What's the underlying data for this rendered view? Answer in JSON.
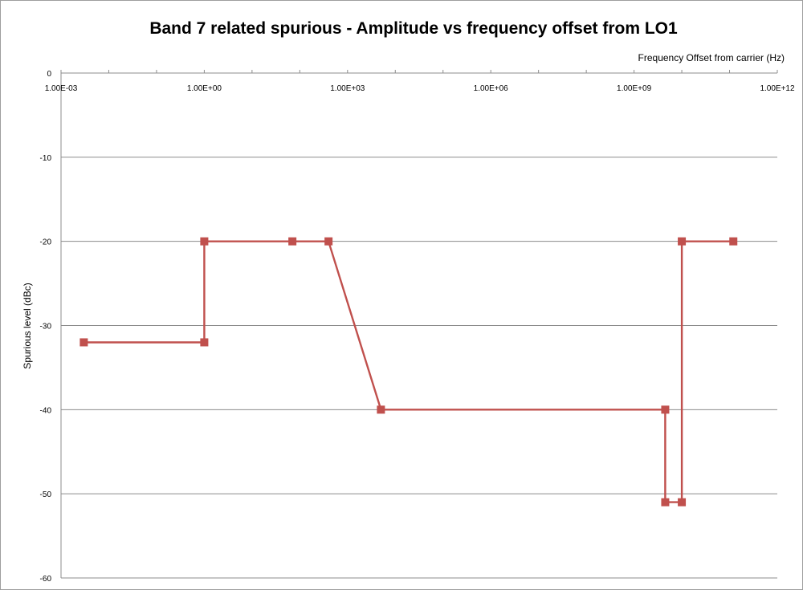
{
  "chart_data": {
    "type": "line",
    "title": "Band 7 related spurious - Amplitude vs frequency offset from LO1",
    "xlabel": "Frequency Offset from carrier (Hz)",
    "ylabel": "Spurious level (dBc)",
    "x_scale": "log",
    "xlim": [
      0.001,
      1000000000000
    ],
    "ylim": [
      -60,
      0
    ],
    "x_tick_labels": [
      "1.00E-03",
      "1.00E+00",
      "1.00E+03",
      "1.00E+06",
      "1.00E+09",
      "1.00E+12"
    ],
    "y_tick_labels": [
      "0",
      "-10",
      "-20",
      "-30",
      "-40",
      "-50",
      "-60"
    ],
    "y_ticks": [
      0,
      -10,
      -20,
      -30,
      -40,
      -50,
      -60
    ],
    "grid": "horizontal",
    "legend": "none",
    "series": [
      {
        "color": "#c0504d",
        "marker": "square",
        "points": [
          {
            "x": 0.003,
            "y": -32
          },
          {
            "x": 1,
            "y": -32
          },
          {
            "x": 1,
            "y": -20
          },
          {
            "x": 70,
            "y": -20
          },
          {
            "x": 400,
            "y": -20
          },
          {
            "x": 5000,
            "y": -40
          },
          {
            "x": 4500000000,
            "y": -40
          },
          {
            "x": 4500000000,
            "y": -51
          },
          {
            "x": 10000000000,
            "y": -51
          },
          {
            "x": 10000000000,
            "y": -20
          },
          {
            "x": 120000000000,
            "y": -20
          }
        ]
      }
    ]
  }
}
